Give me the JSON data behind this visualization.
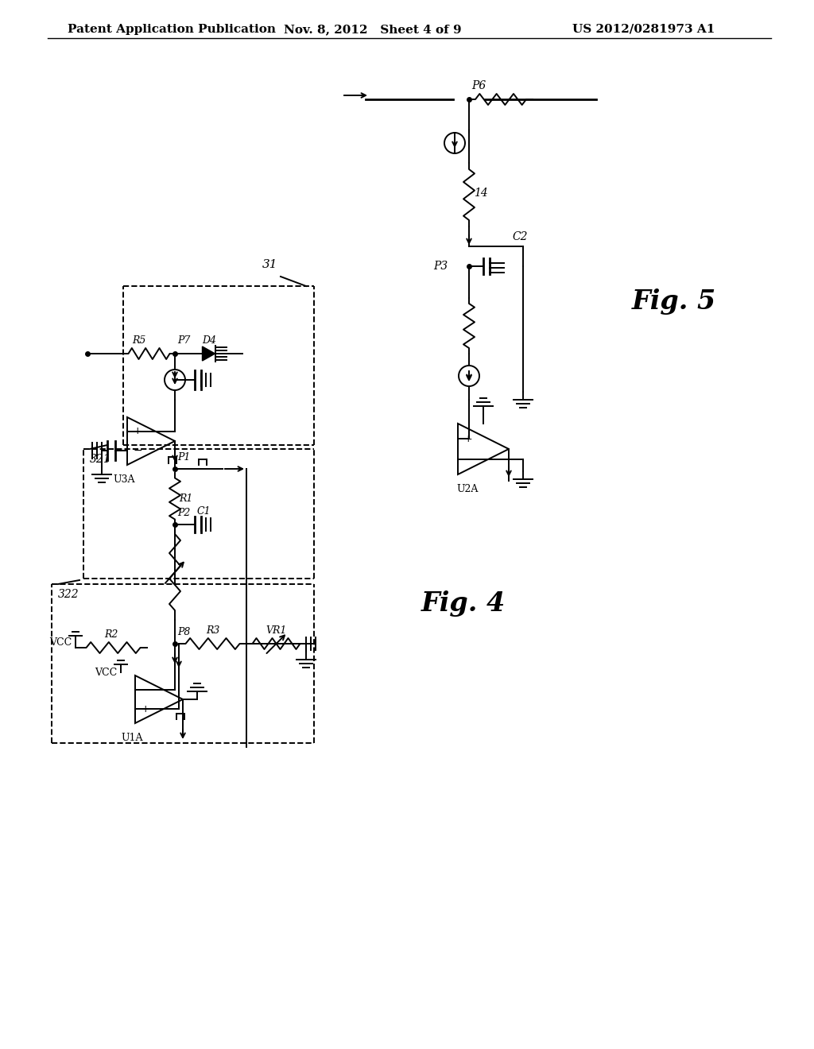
{
  "title_left": "Patent Application Publication",
  "title_center": "Nov. 8, 2012   Sheet 4 of 9",
  "title_right": "US 2012/0281973 A1",
  "fig5_label": "Fig. 5",
  "fig4_label": "Fig. 4",
  "bg": "#ffffff",
  "lc": "#000000"
}
